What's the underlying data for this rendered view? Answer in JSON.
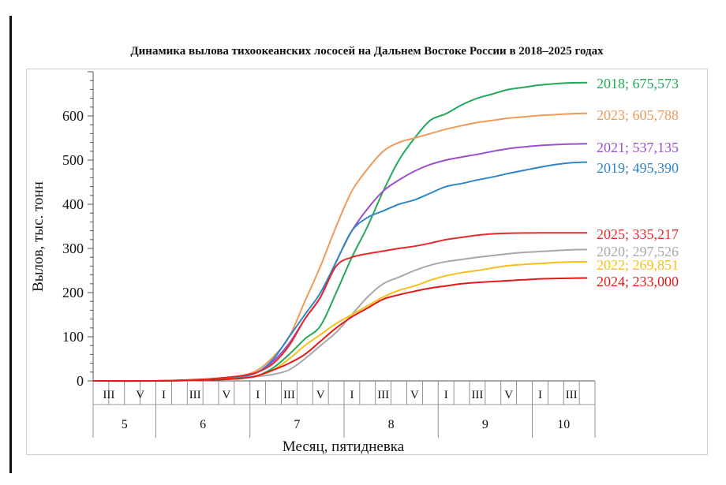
{
  "chart_data": {
    "type": "line",
    "title": "Динамика вылова тихоокеанских лососей на Дальнем Востоке России в 2018–2025 годах",
    "xlabel": "Месяц, пятидневка",
    "ylabel": "Вылов, тыс. тонн",
    "ylim": [
      0,
      700
    ],
    "yticks": [
      "0",
      "100",
      "200",
      "300",
      "400",
      "500",
      "600"
    ],
    "months": [
      {
        "label": "5",
        "start": 0,
        "end": 4
      },
      {
        "label": "6",
        "start": 4,
        "end": 10
      },
      {
        "label": "7",
        "start": 10,
        "end": 16
      },
      {
        "label": "8",
        "start": 16,
        "end": 22
      },
      {
        "label": "9",
        "start": 22,
        "end": 28
      },
      {
        "label": "10",
        "start": 28,
        "end": 32
      }
    ],
    "pentad_labels": [
      {
        "pos": 1,
        "text": "III"
      },
      {
        "pos": 3,
        "text": "V"
      },
      {
        "pos": 4.5,
        "text": "I"
      },
      {
        "pos": 6.5,
        "text": "III"
      },
      {
        "pos": 8.5,
        "text": "V"
      },
      {
        "pos": 10.5,
        "text": "I"
      },
      {
        "pos": 12.5,
        "text": "III"
      },
      {
        "pos": 14.5,
        "text": "V"
      },
      {
        "pos": 16.5,
        "text": "I"
      },
      {
        "pos": 18.5,
        "text": "III"
      },
      {
        "pos": 20.5,
        "text": "V"
      },
      {
        "pos": 22.5,
        "text": "I"
      },
      {
        "pos": 24.5,
        "text": "III"
      },
      {
        "pos": 26.5,
        "text": "V"
      },
      {
        "pos": 28.5,
        "text": "I"
      },
      {
        "pos": 30.5,
        "text": "III"
      }
    ],
    "series": [
      {
        "name": "2018",
        "color": "#22a85a",
        "label": "2018; 675,573",
        "points": [
          [
            0,
            0
          ],
          [
            4,
            0
          ],
          [
            6,
            1
          ],
          [
            8,
            3
          ],
          [
            9.5,
            6
          ],
          [
            10.5,
            12
          ],
          [
            11.5,
            30
          ],
          [
            12.5,
            60
          ],
          [
            13.5,
            95
          ],
          [
            14.5,
            125
          ],
          [
            15.5,
            200
          ],
          [
            16.5,
            280
          ],
          [
            17.5,
            350
          ],
          [
            18.5,
            430
          ],
          [
            19.5,
            500
          ],
          [
            20.5,
            550
          ],
          [
            21.5,
            590
          ],
          [
            22.5,
            605
          ],
          [
            23.5,
            625
          ],
          [
            24.5,
            640
          ],
          [
            25.5,
            650
          ],
          [
            26.5,
            660
          ],
          [
            27.5,
            665
          ],
          [
            28.5,
            670
          ],
          [
            29.5,
            673
          ],
          [
            30.5,
            675
          ],
          [
            31.5,
            675.573
          ]
        ]
      },
      {
        "name": "2023",
        "color": "#ef9a5a",
        "label": "2023; 605,788",
        "points": [
          [
            0,
            0
          ],
          [
            4,
            0
          ],
          [
            6,
            2
          ],
          [
            8,
            6
          ],
          [
            9.5,
            12
          ],
          [
            10.5,
            25
          ],
          [
            11.5,
            55
          ],
          [
            12.5,
            100
          ],
          [
            13.5,
            180
          ],
          [
            14.5,
            260
          ],
          [
            15.5,
            350
          ],
          [
            16.5,
            430
          ],
          [
            17.5,
            480
          ],
          [
            18.5,
            520
          ],
          [
            19.5,
            540
          ],
          [
            20.5,
            550
          ],
          [
            21.5,
            560
          ],
          [
            22.5,
            570
          ],
          [
            23.5,
            578
          ],
          [
            24.5,
            585
          ],
          [
            25.5,
            590
          ],
          [
            26.5,
            595
          ],
          [
            27.5,
            598
          ],
          [
            28.5,
            601
          ],
          [
            29.5,
            603
          ],
          [
            30.5,
            605
          ],
          [
            31.5,
            605.788
          ]
        ]
      },
      {
        "name": "2021",
        "color": "#9b4fd0",
        "label": "2021; 537,135",
        "points": [
          [
            0,
            0
          ],
          [
            4,
            0
          ],
          [
            6,
            1
          ],
          [
            8,
            4
          ],
          [
            9.5,
            9
          ],
          [
            10.5,
            20
          ],
          [
            11.5,
            45
          ],
          [
            12.5,
            85
          ],
          [
            13.5,
            140
          ],
          [
            14.5,
            190
          ],
          [
            15.5,
            270
          ],
          [
            16.5,
            340
          ],
          [
            17.5,
            390
          ],
          [
            18.5,
            430
          ],
          [
            19.5,
            455
          ],
          [
            20.5,
            475
          ],
          [
            21.5,
            490
          ],
          [
            22.5,
            500
          ],
          [
            23.5,
            507
          ],
          [
            24.5,
            513
          ],
          [
            25.5,
            520
          ],
          [
            26.5,
            526
          ],
          [
            27.5,
            530
          ],
          [
            28.5,
            533
          ],
          [
            29.5,
            535
          ],
          [
            30.5,
            536.5
          ],
          [
            31.5,
            537.135
          ]
        ]
      },
      {
        "name": "2019",
        "color": "#2f86c4",
        "label": "2019; 495,390",
        "points": [
          [
            0,
            0
          ],
          [
            4,
            0
          ],
          [
            6,
            2
          ],
          [
            8,
            5
          ],
          [
            9.5,
            10
          ],
          [
            10.5,
            20
          ],
          [
            11.5,
            50
          ],
          [
            12.5,
            100
          ],
          [
            13.5,
            150
          ],
          [
            14.5,
            200
          ],
          [
            15.5,
            270
          ],
          [
            16.5,
            340
          ],
          [
            17.5,
            370
          ],
          [
            18.5,
            385
          ],
          [
            19.5,
            400
          ],
          [
            20.5,
            410
          ],
          [
            21.5,
            425
          ],
          [
            22.5,
            440
          ],
          [
            23.5,
            447
          ],
          [
            24.5,
            455
          ],
          [
            25.5,
            462
          ],
          [
            26.5,
            470
          ],
          [
            27.5,
            477
          ],
          [
            28.5,
            484
          ],
          [
            29.5,
            490
          ],
          [
            30.5,
            494
          ],
          [
            31.5,
            495.39
          ]
        ]
      },
      {
        "name": "2025",
        "color": "#e52a2a",
        "label": "2025; 335,217",
        "points": [
          [
            0,
            0
          ],
          [
            4,
            0
          ],
          [
            6,
            2
          ],
          [
            8,
            6
          ],
          [
            9.5,
            12
          ],
          [
            10.5,
            20
          ],
          [
            11.5,
            40
          ],
          [
            12.5,
            80
          ],
          [
            13.5,
            140
          ],
          [
            14.5,
            190
          ],
          [
            15.5,
            260
          ],
          [
            16.5,
            280
          ],
          [
            17.5,
            288
          ],
          [
            18.5,
            294
          ],
          [
            19.5,
            300
          ],
          [
            20.5,
            305
          ],
          [
            21.5,
            312
          ],
          [
            22.5,
            320
          ],
          [
            23.5,
            325
          ],
          [
            24.5,
            330
          ],
          [
            25.5,
            333
          ],
          [
            26.5,
            334.5
          ],
          [
            27.5,
            335
          ],
          [
            28.5,
            335.1
          ],
          [
            29.5,
            335.2
          ],
          [
            30.5,
            335.2
          ],
          [
            31.5,
            335.217
          ]
        ]
      },
      {
        "name": "2020",
        "color": "#a8a8a8",
        "label": "2020; 297,526",
        "points": [
          [
            0,
            0
          ],
          [
            4,
            0
          ],
          [
            6,
            1
          ],
          [
            8,
            3
          ],
          [
            9.5,
            6
          ],
          [
            10.5,
            10
          ],
          [
            11.5,
            15
          ],
          [
            12.5,
            25
          ],
          [
            13.5,
            50
          ],
          [
            14.5,
            80
          ],
          [
            15.5,
            110
          ],
          [
            16.5,
            150
          ],
          [
            17.5,
            190
          ],
          [
            18.5,
            220
          ],
          [
            19.5,
            235
          ],
          [
            20.5,
            250
          ],
          [
            21.5,
            262
          ],
          [
            22.5,
            270
          ],
          [
            23.5,
            275
          ],
          [
            24.5,
            280
          ],
          [
            25.5,
            284
          ],
          [
            26.5,
            288
          ],
          [
            27.5,
            291
          ],
          [
            28.5,
            293
          ],
          [
            29.5,
            295
          ],
          [
            30.5,
            297
          ],
          [
            31.5,
            297.526
          ]
        ]
      },
      {
        "name": "2022",
        "color": "#f5c018",
        "label": "2022; 269,851",
        "points": [
          [
            0,
            0
          ],
          [
            4,
            0
          ],
          [
            6,
            1
          ],
          [
            8,
            3
          ],
          [
            9.5,
            6
          ],
          [
            10.5,
            12
          ],
          [
            11.5,
            25
          ],
          [
            12.5,
            50
          ],
          [
            13.5,
            80
          ],
          [
            14.5,
            105
          ],
          [
            15.5,
            130
          ],
          [
            16.5,
            150
          ],
          [
            17.5,
            170
          ],
          [
            18.5,
            190
          ],
          [
            19.5,
            205
          ],
          [
            20.5,
            215
          ],
          [
            21.5,
            228
          ],
          [
            22.5,
            238
          ],
          [
            23.5,
            245
          ],
          [
            24.5,
            250
          ],
          [
            25.5,
            256
          ],
          [
            26.5,
            261
          ],
          [
            27.5,
            264
          ],
          [
            28.5,
            266
          ],
          [
            29.5,
            268
          ],
          [
            30.5,
            269.5
          ],
          [
            31.5,
            269.851
          ]
        ]
      },
      {
        "name": "2024",
        "color": "#e41818",
        "label": "2024; 233,000",
        "points": [
          [
            0,
            0
          ],
          [
            4,
            0
          ],
          [
            6,
            1
          ],
          [
            8,
            3
          ],
          [
            9.5,
            6
          ],
          [
            10.5,
            12
          ],
          [
            11.5,
            25
          ],
          [
            12.5,
            40
          ],
          [
            13.5,
            60
          ],
          [
            14.5,
            90
          ],
          [
            15.5,
            120
          ],
          [
            16.5,
            145
          ],
          [
            17.5,
            165
          ],
          [
            18.5,
            185
          ],
          [
            19.5,
            195
          ],
          [
            20.5,
            203
          ],
          [
            21.5,
            210
          ],
          [
            22.5,
            215
          ],
          [
            23.5,
            220
          ],
          [
            24.5,
            223
          ],
          [
            25.5,
            225
          ],
          [
            26.5,
            227
          ],
          [
            27.5,
            229
          ],
          [
            28.5,
            231
          ],
          [
            29.5,
            232
          ],
          [
            30.5,
            232.7
          ],
          [
            31.5,
            233.0
          ]
        ]
      }
    ]
  }
}
